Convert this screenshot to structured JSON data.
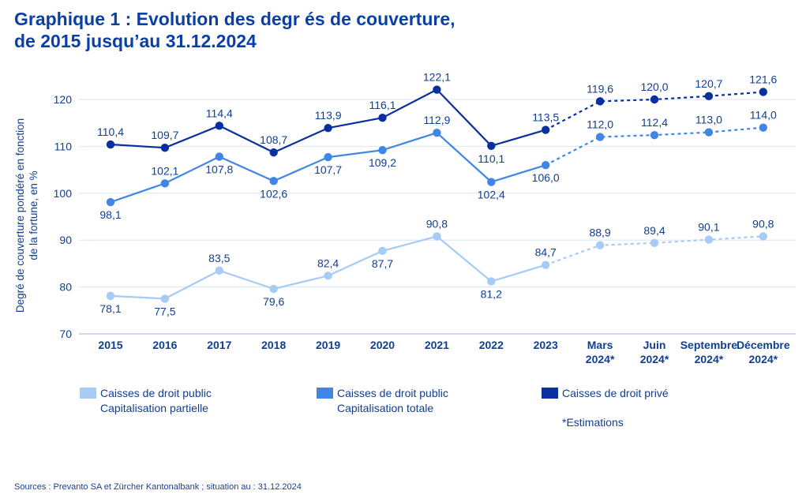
{
  "title_line1": "Graphique 1 : Evolution des degr és de couverture,",
  "title_line2": "de 2015 jusqu’au 31.12.2024",
  "source": "Sources : Prevanto SA et Zürcher Kantonalbank ; situation au : 31.12.2024",
  "chart_data": {
    "type": "line",
    "title": "Graphique 1 : Evolution des degr és de couverture, de 2015 jusqu’au 31.12.2024",
    "ylabel_line1": "Degré de couverture pondéré en fonction",
    "ylabel_line2": "de la fortune, en %",
    "xlabel": "",
    "ylim": [
      70,
      122
    ],
    "yticks": [
      70,
      80,
      90,
      100,
      110,
      120
    ],
    "grid": true,
    "categories": [
      [
        "2015"
      ],
      [
        "2016"
      ],
      [
        "2017"
      ],
      [
        "2018"
      ],
      [
        "2019"
      ],
      [
        "2020"
      ],
      [
        "2021"
      ],
      [
        "2022"
      ],
      [
        "2023"
      ],
      [
        "Mars",
        "2024*"
      ],
      [
        "Juin",
        "2024*"
      ],
      [
        "Septembre",
        "2024*"
      ],
      [
        "Décembre",
        "2024*"
      ]
    ],
    "estimates_from_index": 9,
    "series": [
      {
        "name": "Caisses de droit privé",
        "legend_line1": "Caisses de droit privé",
        "legend_line2": "",
        "color": "#0a2f9e",
        "values": [
          110.4,
          109.7,
          114.4,
          108.7,
          113.9,
          116.1,
          122.1,
          110.1,
          113.5,
          119.6,
          120.0,
          120.7,
          121.6
        ],
        "labels": [
          "110,4",
          "109,7",
          "114,4",
          "108,7",
          "113,9",
          "116,1",
          "122,1",
          "110,1",
          "113,5",
          "119,6",
          "120,0",
          "120,7",
          "121,6"
        ],
        "label_pos": [
          "above",
          "above",
          "above",
          "above",
          "above",
          "above",
          "above",
          "below",
          "above",
          "above",
          "above",
          "above",
          "above"
        ]
      },
      {
        "name": "Caisses de droit public Capitalisation totale",
        "legend_line1": "Caisses de droit public",
        "legend_line2": "Capitalisation totale",
        "color": "#3f86e6",
        "values": [
          98.1,
          102.1,
          107.8,
          102.6,
          107.7,
          109.2,
          112.9,
          102.4,
          106.0,
          112.0,
          112.4,
          113.0,
          114.0
        ],
        "labels": [
          "98,1",
          "102,1",
          "107,8",
          "102,6",
          "107,7",
          "109,2",
          "112,9",
          "102,4",
          "106,0",
          "112,0",
          "112,4",
          "113,0",
          "114,0"
        ],
        "label_pos": [
          "below",
          "above",
          "below",
          "below",
          "below",
          "below",
          "above",
          "below",
          "below",
          "above",
          "above",
          "above",
          "above"
        ]
      },
      {
        "name": "Caisses de droit public Capitalisation partielle",
        "legend_line1": "Caisses de droit public",
        "legend_line2": "Capitalisation partielle",
        "color": "#a6ccf5",
        "values": [
          78.1,
          77.5,
          83.5,
          79.6,
          82.4,
          87.7,
          90.8,
          81.2,
          84.7,
          88.9,
          89.4,
          90.1,
          90.8
        ],
        "labels": [
          "78,1",
          "77,5",
          "83,5",
          "79,6",
          "82,4",
          "87,7",
          "90,8",
          "81,2",
          "84,7",
          "88,9",
          "89,4",
          "90,1",
          "90,8"
        ],
        "label_pos": [
          "below",
          "below",
          "above",
          "below",
          "above",
          "below",
          "above",
          "below",
          "above",
          "above",
          "above",
          "above",
          "above"
        ]
      }
    ],
    "legend_order": [
      2,
      1,
      0
    ],
    "legend_note": "*Estimations",
    "legend_position": "bottom"
  }
}
